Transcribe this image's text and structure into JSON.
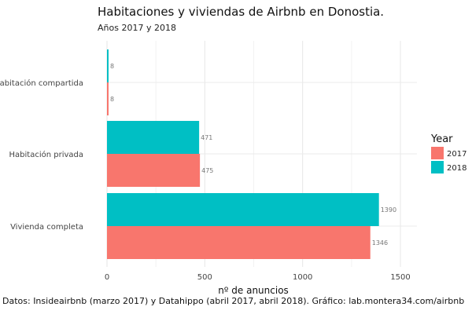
{
  "title": "Habitaciones y viviendas de Airbnb en Donostia.",
  "subtitle": "Años 2017 y 2018",
  "caption": "Datos: Insideairbnb (marzo 2017) y Datahippo (abril 2017, abril 2018). Gráfico: lab.montera34.com/airbnb",
  "chart_data": {
    "type": "bar",
    "orientation": "horizontal",
    "categories": [
      "Habitación compartida",
      "Habitación privada",
      "Vivienda completa"
    ],
    "series": [
      {
        "name": "2017",
        "values": [
          8,
          475,
          1346
        ],
        "color": "#F8766D"
      },
      {
        "name": "2018",
        "values": [
          8,
          471,
          1390
        ],
        "color": "#00BFC4"
      }
    ],
    "xlabel": "nº de anuncios",
    "ylabel": "",
    "xlim": [
      0,
      1600
    ],
    "xticks": [
      0,
      500,
      1000,
      1500
    ],
    "grid": true,
    "legend": {
      "title": "Year",
      "position": "right"
    }
  }
}
